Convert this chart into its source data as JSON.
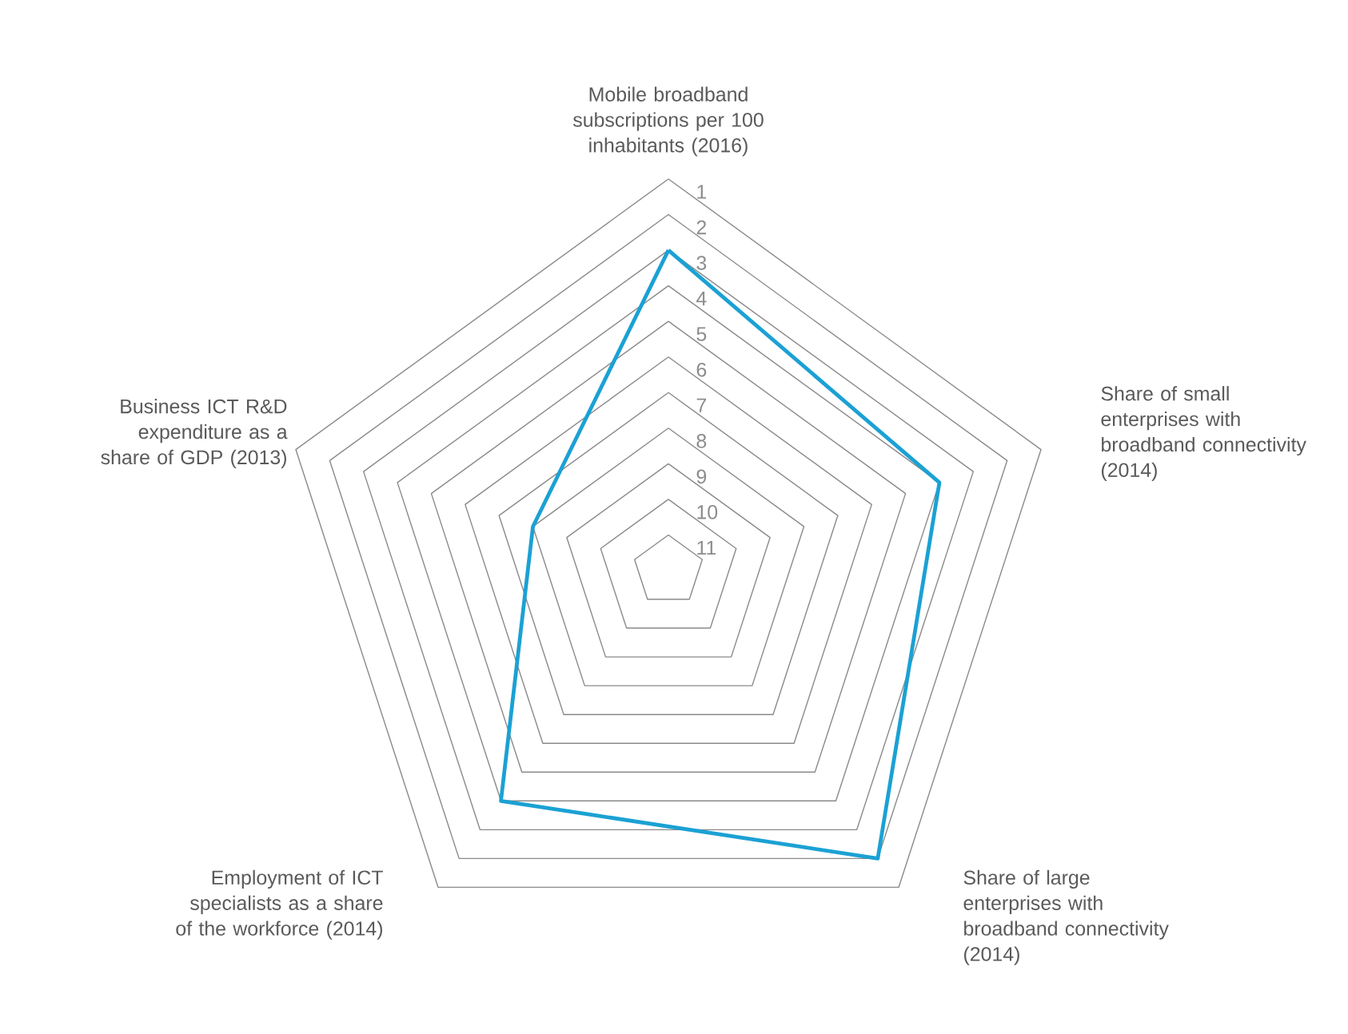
{
  "chart_data": {
    "type": "radar",
    "categories": [
      "Mobile broadband subscriptions per 100 inhabitants (2016)",
      "Share of small enterprises with broadband connectivity (2014)",
      "Share of large enterprises with broadband connectivity (2014)",
      "Employment of ICT specialists as a share of the workforce (2014)",
      "Business ICT R&D expenditure as a share of GDP (2013)"
    ],
    "series": [
      {
        "color": "#1ba1d4",
        "values": [
          3,
          4,
          2,
          4,
          8
        ]
      }
    ],
    "ylim": [
      12,
      1
    ],
    "yticks": [
      1,
      2,
      3,
      4,
      5,
      6,
      7,
      8,
      9,
      10,
      11
    ],
    "grid": true
  }
}
